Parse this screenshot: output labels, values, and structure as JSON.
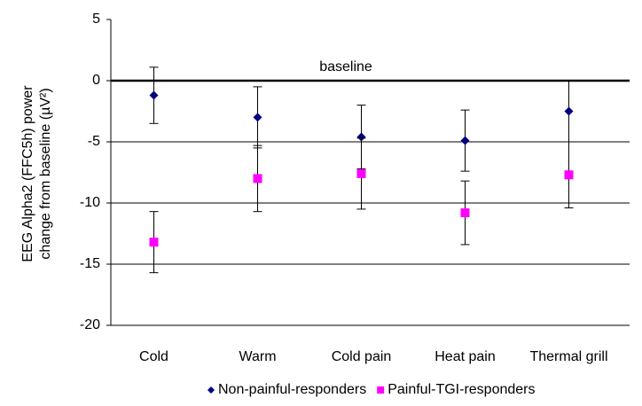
{
  "chart_data": {
    "type": "scatter",
    "y_label": [
      "EEG Alpha2 (FFC5h) power",
      "change from baseline (µV²)"
    ],
    "annotation": "baseline",
    "categories": [
      "Cold",
      "Warm",
      "Cold pain",
      "Heat pain",
      "Thermal grill"
    ],
    "series": [
      {
        "name": "Non-painful-responders",
        "color": "#000080",
        "marker": "diamond",
        "values": [
          -1.2,
          -3.0,
          -4.6,
          -4.9,
          -2.5
        ],
        "errors": [
          2.3,
          2.5,
          2.6,
          2.5,
          2.5
        ]
      },
      {
        "name": "Painful-TGI-responders",
        "color": "#ff00ff",
        "marker": "square",
        "values": [
          -13.2,
          -8.0,
          -7.6,
          -10.8,
          -7.7
        ],
        "errors": [
          2.5,
          2.7,
          2.9,
          2.6,
          2.7
        ]
      }
    ],
    "ylim": [
      -20,
      5
    ],
    "yticks": [
      5,
      0,
      -5,
      -10,
      -15,
      -20
    ],
    "grid": true
  }
}
